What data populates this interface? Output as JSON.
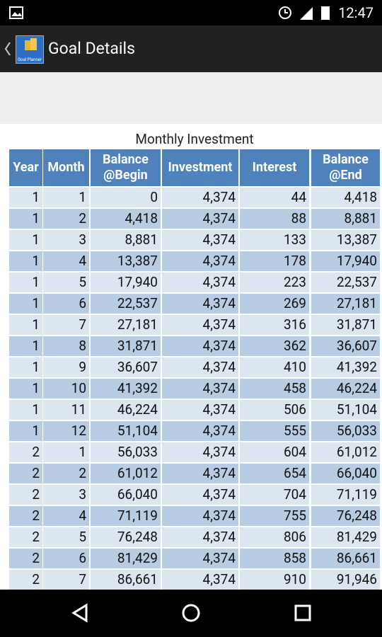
{
  "status_bar": {
    "time": "12:47"
  },
  "app_bar": {
    "icon_label": "Goal Planner",
    "title": "Goal Details"
  },
  "table": {
    "title": "Monthly Investment",
    "headers": [
      "Year",
      "Month",
      "Balance @Begin",
      "Investment",
      "Interest",
      "Balance @End"
    ],
    "rows": [
      [
        "1",
        "1",
        "0",
        "4,374",
        "44",
        "4,418"
      ],
      [
        "1",
        "2",
        "4,418",
        "4,374",
        "88",
        "8,881"
      ],
      [
        "1",
        "3",
        "8,881",
        "4,374",
        "133",
        "13,387"
      ],
      [
        "1",
        "4",
        "13,387",
        "4,374",
        "178",
        "17,940"
      ],
      [
        "1",
        "5",
        "17,940",
        "4,374",
        "223",
        "22,537"
      ],
      [
        "1",
        "6",
        "22,537",
        "4,374",
        "269",
        "27,181"
      ],
      [
        "1",
        "7",
        "27,181",
        "4,374",
        "316",
        "31,871"
      ],
      [
        "1",
        "8",
        "31,871",
        "4,374",
        "362",
        "36,607"
      ],
      [
        "1",
        "9",
        "36,607",
        "4,374",
        "410",
        "41,392"
      ],
      [
        "1",
        "10",
        "41,392",
        "4,374",
        "458",
        "46,224"
      ],
      [
        "1",
        "11",
        "46,224",
        "4,374",
        "506",
        "51,104"
      ],
      [
        "1",
        "12",
        "51,104",
        "4,374",
        "555",
        "56,033"
      ],
      [
        "2",
        "1",
        "56,033",
        "4,374",
        "604",
        "61,012"
      ],
      [
        "2",
        "2",
        "61,012",
        "4,374",
        "654",
        "66,040"
      ],
      [
        "2",
        "3",
        "66,040",
        "4,374",
        "704",
        "71,119"
      ],
      [
        "2",
        "4",
        "71,119",
        "4,374",
        "755",
        "76,248"
      ],
      [
        "2",
        "5",
        "76,248",
        "4,374",
        "806",
        "81,429"
      ],
      [
        "2",
        "6",
        "81,429",
        "4,374",
        "858",
        "86,661"
      ],
      [
        "2",
        "7",
        "86,661",
        "4,374",
        "910",
        "91,946"
      ]
    ]
  }
}
